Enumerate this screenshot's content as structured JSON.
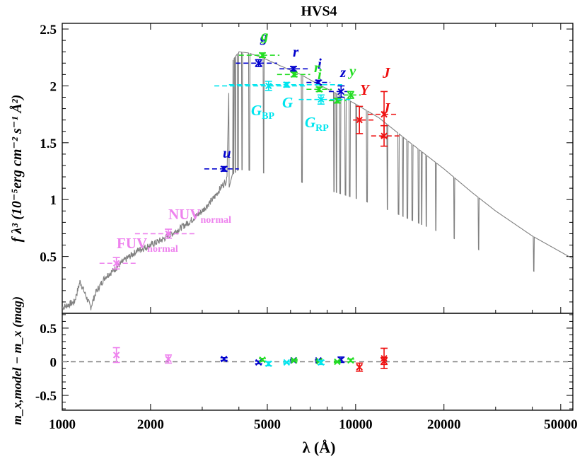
{
  "chart_data": [
    {
      "panel": "top",
      "type": "scatter",
      "title": "HVS4",
      "ylabel": "f λ³ (10⁻⁵erg cm⁻² s⁻¹ Å²)",
      "xscale": "log",
      "xlim": [
        1000,
        55000
      ],
      "ylim": [
        0,
        2.55
      ],
      "yticks": [
        "0.5",
        "1",
        "1.5",
        "2",
        "2.5"
      ],
      "model_spectrum": [
        [
          1000,
          0.05
        ],
        [
          1100,
          0.1
        ],
        [
          1150,
          0.28
        ],
        [
          1250,
          0.05
        ],
        [
          1300,
          0.18
        ],
        [
          1400,
          0.32
        ],
        [
          1500,
          0.38
        ],
        [
          1600,
          0.45
        ],
        [
          1800,
          0.55
        ],
        [
          2000,
          0.6
        ],
        [
          2200,
          0.65
        ],
        [
          2400,
          0.71
        ],
        [
          2700,
          0.8
        ],
        [
          3000,
          0.9
        ],
        [
          3300,
          1.02
        ],
        [
          3500,
          1.12
        ],
        [
          3640,
          1.17
        ],
        [
          3700,
          2.0
        ],
        [
          3800,
          2.22
        ],
        [
          4000,
          2.3
        ],
        [
          4300,
          2.29
        ],
        [
          4800,
          2.25
        ],
        [
          5500,
          2.18
        ],
        [
          6500,
          2.1
        ],
        [
          7500,
          2.01
        ],
        [
          8500,
          1.94
        ],
        [
          10000,
          1.84
        ],
        [
          12000,
          1.72
        ],
        [
          15000,
          1.52
        ],
        [
          20000,
          1.27
        ],
        [
          25000,
          1.06
        ],
        [
          30000,
          0.9
        ],
        [
          40000,
          0.68
        ],
        [
          55000,
          0.48
        ]
      ],
      "absorption_lines": [
        3715,
        3735,
        3750,
        3770,
        3798,
        3835,
        3889,
        3970,
        4102,
        4340,
        4861,
        6563,
        8440,
        8600,
        8860,
        9230,
        9550,
        10050,
        10940,
        12820,
        14000,
        14500,
        15000,
        15600,
        16400,
        16800,
        17400,
        18750,
        21660,
        26250,
        40500
      ],
      "observed": [
        {
          "band": "FUV",
          "color": "#ee82ee",
          "x": 1530,
          "xerr": [
            1340,
            1800
          ],
          "y": 0.44,
          "yerr": 0.05,
          "label": "FUV"
        },
        {
          "band": "NUV",
          "color": "#ee82ee",
          "x": 2300,
          "xerr": [
            1770,
            2830
          ],
          "y": 0.7,
          "yerr": 0.04,
          "label": "NUV"
        },
        {
          "band": "u",
          "color": "#0000cd",
          "x": 3560,
          "xerr": [
            3050,
            4000
          ],
          "y": 1.27,
          "yerr": 0.02,
          "label": "u"
        },
        {
          "band": "g",
          "color": "#0000cd",
          "x": 4670,
          "xerr": [
            3900,
            5400
          ],
          "y": 2.2,
          "yerr": 0.03,
          "label": "g"
        },
        {
          "band": "r",
          "color": "#0000cd",
          "x": 6140,
          "xerr": [
            5500,
            6900
          ],
          "y": 2.15,
          "yerr": 0.02,
          "label": "r"
        },
        {
          "band": "i",
          "color": "#0000cd",
          "x": 7470,
          "xerr": [
            6800,
            8200
          ],
          "y": 2.03,
          "yerr": 0.02,
          "label": "i"
        },
        {
          "band": "z",
          "color": "#0000cd",
          "x": 8920,
          "xerr": [
            8100,
            9700
          ],
          "y": 1.95,
          "yerr": 0.05,
          "label": "z"
        },
        {
          "band": "g_ps",
          "color": "#22dd22",
          "x": 4810,
          "xerr": [
            4000,
            5500
          ],
          "y": 2.27,
          "yerr": 0.02,
          "label": "g"
        },
        {
          "band": "r_ps",
          "color": "#22dd22",
          "x": 6170,
          "xerr": [
            5400,
            7000
          ],
          "y": 2.1,
          "yerr": 0.02,
          "label": "r"
        },
        {
          "band": "i_ps",
          "color": "#22dd22",
          "x": 7520,
          "xerr": [
            6800,
            8300
          ],
          "y": 1.97,
          "yerr": 0.02,
          "label": "i"
        },
        {
          "band": "z_ps",
          "color": "#22dd22",
          "x": 8660,
          "xerr": [
            8100,
            9300
          ],
          "y": 1.87,
          "yerr": 0.02,
          "label": "z"
        },
        {
          "band": "y_ps",
          "color": "#22dd22",
          "x": 9620,
          "xerr": [
            9100,
            10400
          ],
          "y": 1.92,
          "yerr": 0.03,
          "label": "y"
        },
        {
          "band": "G_BP",
          "color": "#00e5ee",
          "x": 5050,
          "xerr": [
            3300,
            6800
          ],
          "y": 2.0,
          "yerr": 0.04,
          "label": "G_BP"
        },
        {
          "band": "G",
          "color": "#00e5ee",
          "x": 5820,
          "xerr": [
            3700,
            9000
          ],
          "y": 2.01,
          "yerr": 0.02,
          "label": "G"
        },
        {
          "band": "G_RP",
          "color": "#00e5ee",
          "x": 7620,
          "xerr": [
            6400,
            9800
          ],
          "y": 1.88,
          "yerr": 0.04,
          "label": "G_RP"
        },
        {
          "band": "Y",
          "color": "#ee1111",
          "x": 10300,
          "xerr": [
            9800,
            11500
          ],
          "y": 1.7,
          "yerr": 0.12,
          "label": "Y"
        },
        {
          "band": "J",
          "color": "#ee1111",
          "x": 12500,
          "xerr": [
            11000,
            14000
          ],
          "y": 1.75,
          "yerr": 0.2,
          "label": "J"
        },
        {
          "band": "J2",
          "color": "#ee1111",
          "x": 12500,
          "xerr": [
            11300,
            14100
          ],
          "y": 1.56,
          "yerr": 0.09,
          "label": "J"
        }
      ]
    },
    {
      "panel": "bottom",
      "type": "scatter",
      "xlabel": "λ (Å)",
      "ylabel": "m_x,model − m_x (mag)",
      "xscale": "log",
      "xlim": [
        1000,
        55000
      ],
      "ylim": [
        -0.72,
        0.72
      ],
      "xticks": [
        "1000",
        "2000",
        "5000",
        "10000",
        "20000",
        "50000"
      ],
      "yticks": [
        "-0.5",
        "0",
        "0.5"
      ],
      "reference_line": 0,
      "residuals": [
        {
          "band": "FUV",
          "color": "#ee82ee",
          "x": 1530,
          "y": 0.1,
          "yerr": 0.11
        },
        {
          "band": "NUV",
          "color": "#ee82ee",
          "x": 2300,
          "y": 0.04,
          "yerr": 0.06
        },
        {
          "band": "u",
          "color": "#0000cd",
          "x": 3560,
          "y": 0.04,
          "yerr": 0.02
        },
        {
          "band": "g",
          "color": "#0000cd",
          "x": 4670,
          "y": -0.01,
          "yerr": 0.02
        },
        {
          "band": "r",
          "color": "#0000cd",
          "x": 6140,
          "y": 0.02,
          "yerr": 0.01
        },
        {
          "band": "i",
          "color": "#0000cd",
          "x": 7470,
          "y": 0.02,
          "yerr": 0.01
        },
        {
          "band": "z",
          "color": "#0000cd",
          "x": 8920,
          "y": 0.03,
          "yerr": 0.04
        },
        {
          "band": "g_ps",
          "color": "#22dd22",
          "x": 4810,
          "y": 0.03,
          "yerr": 0.02
        },
        {
          "band": "r_ps",
          "color": "#22dd22",
          "x": 6170,
          "y": 0.02,
          "yerr": 0.01
        },
        {
          "band": "i_ps",
          "color": "#22dd22",
          "x": 7520,
          "y": 0.01,
          "yerr": 0.01
        },
        {
          "band": "z_ps",
          "color": "#22dd22",
          "x": 8660,
          "y": 0.0,
          "yerr": 0.01
        },
        {
          "band": "y_ps",
          "color": "#22dd22",
          "x": 9620,
          "y": 0.02,
          "yerr": 0.02
        },
        {
          "band": "G_BP",
          "color": "#00e5ee",
          "x": 5050,
          "y": -0.03,
          "yerr": 0.03
        },
        {
          "band": "G",
          "color": "#00e5ee",
          "x": 5820,
          "y": -0.01,
          "yerr": 0.01
        },
        {
          "band": "G_RP",
          "color": "#00e5ee",
          "x": 7620,
          "y": -0.01,
          "yerr": 0.03
        },
        {
          "band": "Y",
          "color": "#ee1111",
          "x": 10300,
          "y": -0.08,
          "yerr": 0.06
        },
        {
          "band": "J",
          "color": "#ee1111",
          "x": 12500,
          "y": 0.05,
          "yerr": 0.15
        },
        {
          "band": "J2",
          "color": "#ee1111",
          "x": 12500,
          "y": 0.01,
          "yerr": 0.05
        }
      ]
    }
  ],
  "colors": {
    "model": "#808080",
    "axis": "#000000",
    "zero_line": "#808080"
  }
}
